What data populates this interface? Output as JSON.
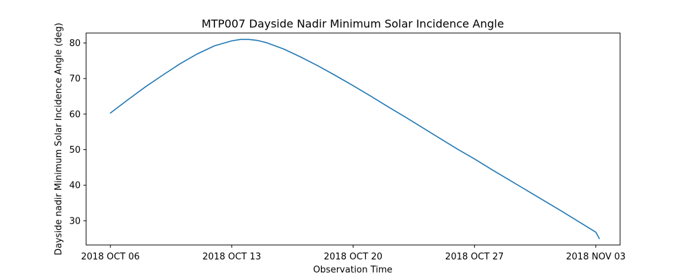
{
  "chart_data": {
    "type": "line",
    "title": "MTP007 Dayside Nadir Minimum Solar Incidence Angle",
    "xlabel": "Observation Time",
    "ylabel": "Dayside nadir Minimum Solar Incidence Angle (deg)",
    "x_unit": "days since 2018 OCT 06",
    "xlim": [
      -1.4,
      29.4
    ],
    "ylim": [
      23.2,
      82.8
    ],
    "x_ticks": [
      {
        "value": 0,
        "label": "2018 OCT 06"
      },
      {
        "value": 7,
        "label": "2018 OCT 13"
      },
      {
        "value": 14,
        "label": "2018 OCT 20"
      },
      {
        "value": 21,
        "label": "2018 OCT 27"
      },
      {
        "value": 28,
        "label": "2018 NOV 03"
      }
    ],
    "y_ticks": [
      30,
      40,
      50,
      60,
      70,
      80
    ],
    "grid": false,
    "legend": "none",
    "series": [
      {
        "name": "Dayside nadir Minimum Solar Incidence Angle",
        "color": "#1f77b4",
        "points": [
          {
            "x": 0.0,
            "y": 60.3
          },
          {
            "x": 1.0,
            "y": 64.0
          },
          {
            "x": 2.0,
            "y": 67.6
          },
          {
            "x": 3.0,
            "y": 70.9
          },
          {
            "x": 4.0,
            "y": 74.1
          },
          {
            "x": 5.0,
            "y": 76.9
          },
          {
            "x": 6.0,
            "y": 79.2
          },
          {
            "x": 7.0,
            "y": 80.6
          },
          {
            "x": 7.5,
            "y": 81.0
          },
          {
            "x": 8.0,
            "y": 81.0
          },
          {
            "x": 8.5,
            "y": 80.7
          },
          {
            "x": 9.0,
            "y": 80.1
          },
          {
            "x": 10.0,
            "y": 78.3
          },
          {
            "x": 11.0,
            "y": 76.0
          },
          {
            "x": 12.0,
            "y": 73.5
          },
          {
            "x": 13.0,
            "y": 70.8
          },
          {
            "x": 14.0,
            "y": 68.0
          },
          {
            "x": 15.0,
            "y": 65.1
          },
          {
            "x": 16.0,
            "y": 62.1
          },
          {
            "x": 17.0,
            "y": 59.2
          },
          {
            "x": 18.0,
            "y": 56.2
          },
          {
            "x": 19.0,
            "y": 53.2
          },
          {
            "x": 20.0,
            "y": 50.2
          },
          {
            "x": 21.0,
            "y": 47.4
          },
          {
            "x": 22.0,
            "y": 44.4
          },
          {
            "x": 23.0,
            "y": 41.5
          },
          {
            "x": 24.0,
            "y": 38.6
          },
          {
            "x": 25.0,
            "y": 35.7
          },
          {
            "x": 26.0,
            "y": 32.8
          },
          {
            "x": 27.0,
            "y": 29.8
          },
          {
            "x": 28.0,
            "y": 26.8
          },
          {
            "x": 28.2,
            "y": 25.0
          }
        ]
      }
    ]
  }
}
